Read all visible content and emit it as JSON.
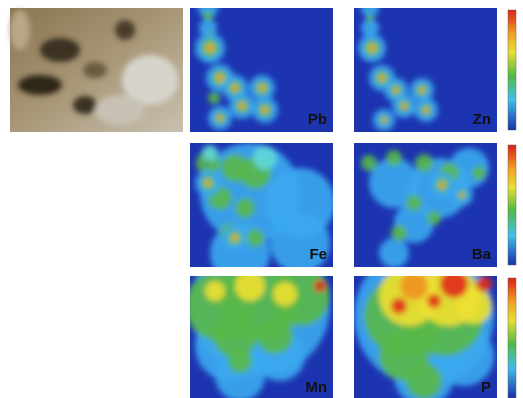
{
  "panels": [
    {
      "label": "Pb"
    },
    {
      "label": "Zn"
    },
    {
      "label": "Fe"
    },
    {
      "label": "Ba"
    },
    {
      "label": "Mn"
    },
    {
      "label": "P"
    }
  ]
}
